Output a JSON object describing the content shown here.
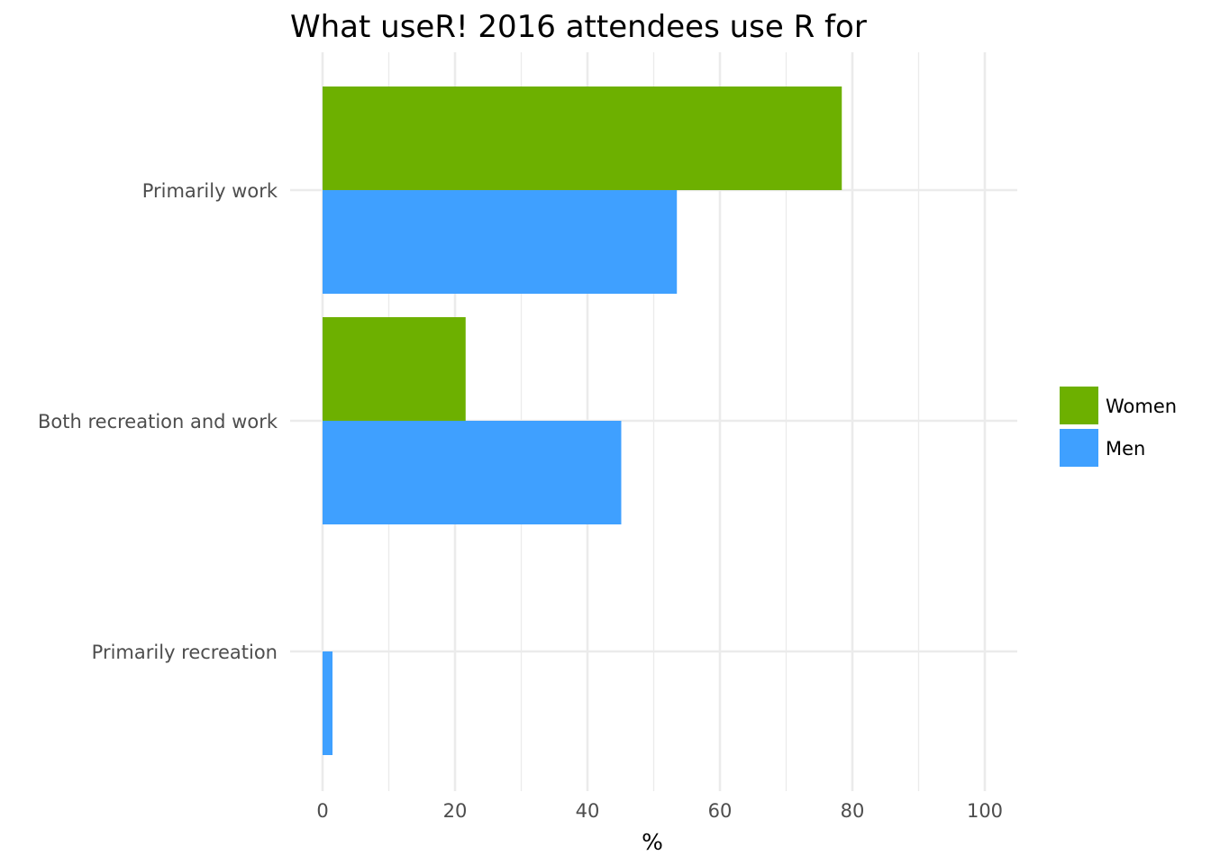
{
  "chart_data": {
    "type": "bar",
    "orientation": "horizontal",
    "title": "What useR! 2016 attendees use R for",
    "xlabel": "%",
    "ylabel": "",
    "xlim": [
      0,
      105
    ],
    "xticks": [
      0,
      20,
      40,
      60,
      80,
      100
    ],
    "categories": [
      "Primarily work",
      "Both recreation and work",
      "Primarily recreation"
    ],
    "series": [
      {
        "name": "Women",
        "color": "#6db000",
        "values": [
          78.4,
          21.6,
          0
        ]
      },
      {
        "name": "Men",
        "color": "#3fa0ff",
        "values": [
          53.5,
          45.1,
          1.5
        ]
      }
    ],
    "grid": true,
    "legend_position": "right"
  }
}
